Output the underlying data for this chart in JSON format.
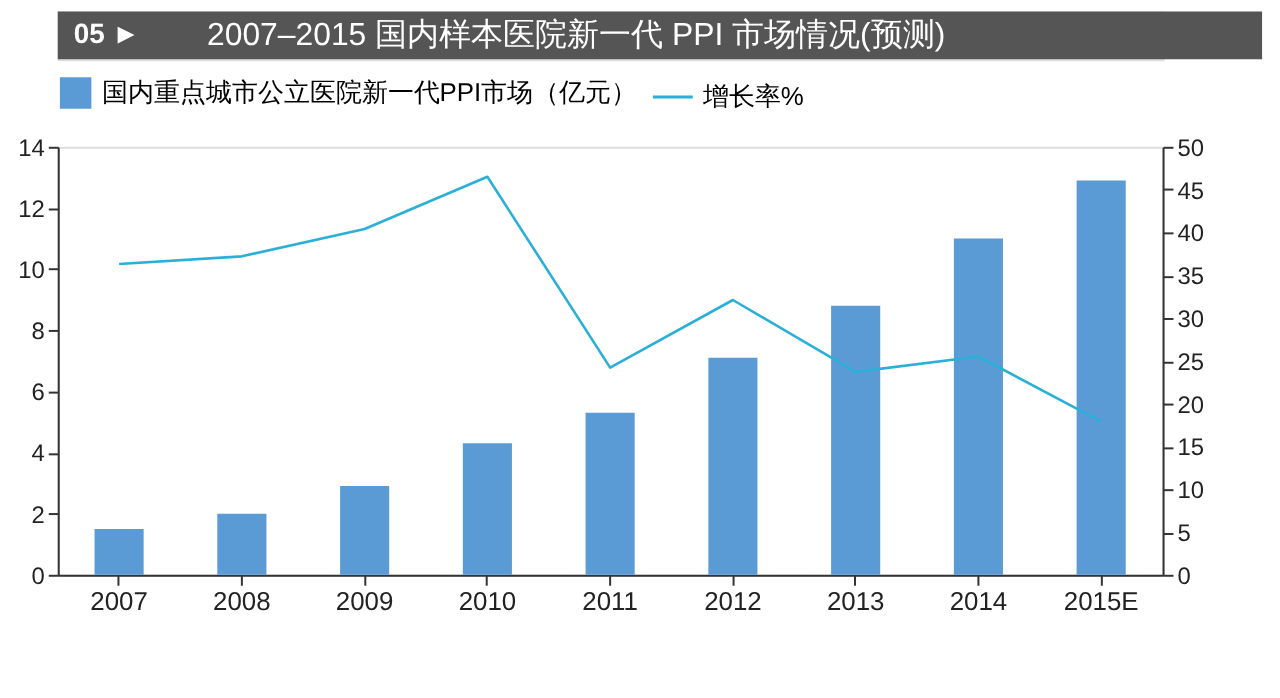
{
  "chart_data": {
    "type": "bar",
    "title": "2007–2015 国内样本医院新一代 PPI 市场情况(预测)",
    "annotations": [
      "05 ►"
    ],
    "categories": [
      "2007",
      "2008",
      "2009",
      "2010",
      "2011",
      "2012",
      "2013",
      "2014",
      "2015E"
    ],
    "series": [
      {
        "name": "国内重点城市公立医院新一代PPI市场（亿元）",
        "color": "#5b9bd5",
        "values": [
          1.5,
          2.0,
          2.9,
          4.3,
          5.3,
          7.1,
          8.8,
          11.0,
          12.9
        ]
      },
      {
        "name": "增长率%",
        "type": "line",
        "axis": "y2",
        "color": "#2ab0d8",
        "values": [
          36.3,
          37.2,
          40.4,
          46.5,
          24.2,
          32.1,
          23.7,
          25.5,
          17.9
        ]
      }
    ],
    "ylim": [
      0,
      14
    ],
    "yticks": [
      0,
      2,
      4,
      6,
      8,
      10,
      12,
      14
    ],
    "y2lim": [
      0,
      50
    ],
    "y2ticks": [
      0,
      5,
      10,
      15,
      20,
      25,
      30,
      35,
      40,
      45,
      50
    ],
    "grid": false,
    "legend": "top",
    "marker": "none"
  }
}
